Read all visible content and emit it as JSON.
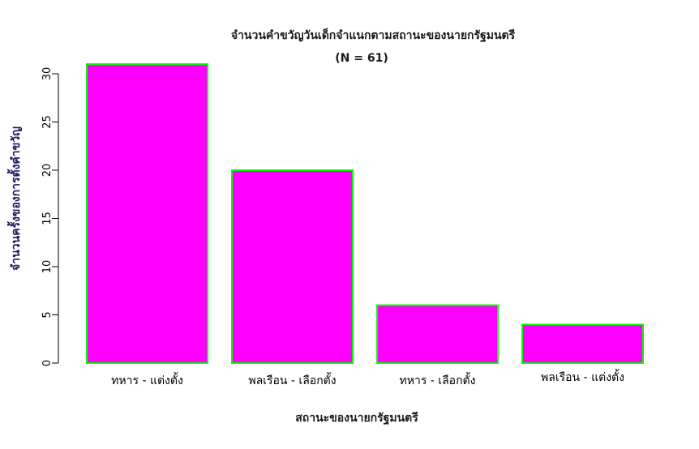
{
  "chart_data": {
    "type": "bar",
    "title": "จำนวนคำขวัญวันเด็กจำแนกตามสถานะของนายกรัฐมนตรี",
    "subtitle": "(N = 61)",
    "xlabel": "สถานะของนายกรัฐมนตรี",
    "ylabel": "จำนวนครั้งของการตั้งคำขวัญ",
    "categories": [
      "ทหาร -  แต่งตั้ง",
      "พลเรือน - เลือกตั้ง",
      "ทหาร - เลือกตั้ง",
      "พลเรือน -  แต่งตั้ง"
    ],
    "values": [
      31,
      20,
      6,
      4
    ],
    "yticks": [
      0,
      5,
      10,
      15,
      20,
      25,
      30
    ],
    "ylim": [
      0,
      31
    ],
    "grid": false,
    "colors": {
      "fill": "#ff00ff",
      "border": "#00ff00",
      "title": "#1a1a1a",
      "ylabel": "#1a1a5e"
    }
  }
}
